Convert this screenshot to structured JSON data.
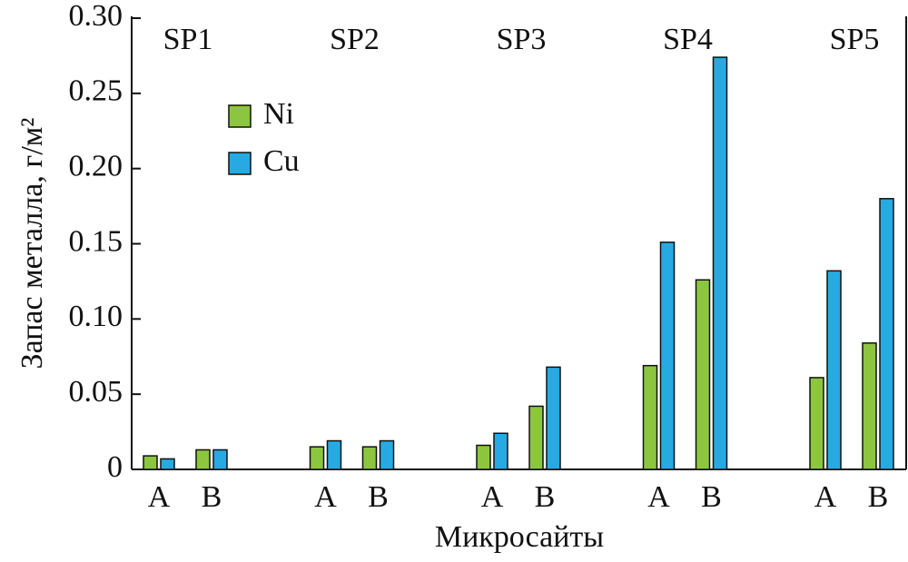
{
  "chart_data": {
    "type": "bar",
    "x_label": "Микросайты",
    "y_label": "Запас металла, г/м²",
    "groups": [
      "SP1",
      "SP2",
      "SP3",
      "SP4",
      "SP5"
    ],
    "categories": [
      "A",
      "B",
      "A",
      "B",
      "A",
      "B",
      "A",
      "B",
      "A",
      "B"
    ],
    "series": [
      {
        "name": "Ni",
        "color": "#8cc63f",
        "values": [
          0.009,
          0.013,
          0.015,
          0.015,
          0.016,
          0.042,
          0.069,
          0.126,
          0.061,
          0.084
        ]
      },
      {
        "name": "Cu",
        "color": "#27aae1",
        "values": [
          0.007,
          0.013,
          0.019,
          0.019,
          0.024,
          0.068,
          0.151,
          0.274,
          0.132,
          0.18
        ]
      }
    ],
    "ylim": [
      0,
      0.3
    ],
    "yticks": [
      0,
      0.05,
      {
        "value": 0.1,
        "label": "0.10"
      },
      0.15,
      {
        "value": 0.2,
        "label": "0.20"
      },
      0.25,
      {
        "value": 0.3,
        "label": "0.30"
      }
    ]
  }
}
